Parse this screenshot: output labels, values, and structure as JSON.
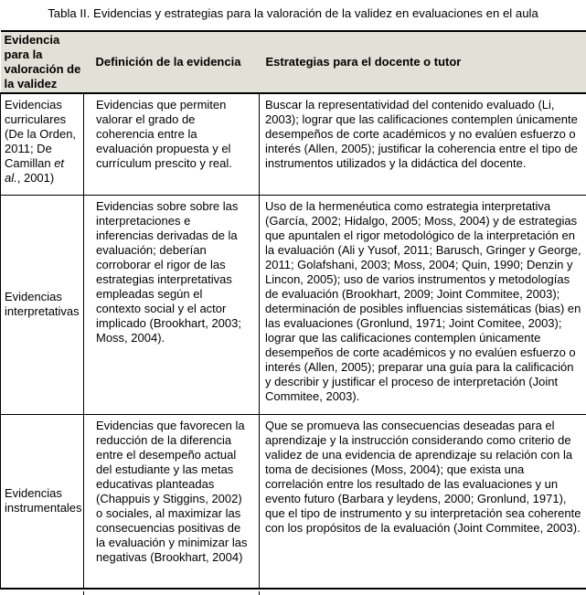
{
  "caption": "Tabla II. Evidencias y estrategias para la valoración de la validez en evaluaciones en el aula",
  "colors": {
    "header_background": "#e2e1d7",
    "border": "#000000",
    "text": "#000000",
    "page_background": "#ffffff"
  },
  "table": {
    "headers": [
      "Evidencia para la valoración de la validez",
      "Definición de la evidencia",
      "Estrategias para el docente o tutor"
    ],
    "rows": [
      {
        "evidencia_pre": "Evidencias curriculares (De la Orden, 2011; De Camillan ",
        "evidencia_italic": "et al.",
        "evidencia_post": ", 2001)",
        "definicion": "Evidencias que permiten valorar el grado de coherencia entre la evaluación propuesta y el currículum prescito y real.",
        "estrategias": "Buscar la representatividad del contenido evaluado (Li, 2003); lograr que las calificaciones contemplen únicamente desempeños de corte académicos y no evalúen esfuerzo o interés (Allen, 2005); justificar la coherencia entre el tipo de instrumentos utilizados y la didáctica del docente."
      },
      {
        "evidencia": "Evidencias interpretativas",
        "definicion": "Evidencias sobre sobre las interpretaciones e inferencias derivadas de la evaluación; deberían corroborar el rigor de las estrategias interpretativas empleadas según el contexto social y el actor implicado (Brookhart, 2003; Moss, 2004).",
        "estrategias": "Uso de la hermenéutica como estrategia interpretativa (García, 2002; Hidalgo, 2005; Moss, 2004) y de estrategias que apuntalen el rigor metodológico de la interpretación en la evaluación (Ali y Yusof, 2011; Barusch, Gringer y George, 2011; Golafshani, 2003; Moss, 2004; Quin, 1990; Denzin y Lincon, 2005); uso de varios instrumentos y metodologías de evaluación (Brookhart, 2009; Joint Commitee, 2003); determinación de posibles influencias sistemáticas (bias) en las evaluaciones (Gronlund, 1971; Joint Comitee, 2003); lograr que las calificaciones contemplen únicamente desempeños de corte académicos y no evalúen esfuerzo o interés (Allen, 2005); preparar una guía para la calificación y describir y justificar el proceso de interpretación (Joint Commitee, 2003)."
      },
      {
        "evidencia": "Evidencias instrumentales",
        "definicion": "Evidencias que favorecen la reducción de la diferencia entre el desempeño actual del estudiante y las metas educativas planteadas (Chappuis y Stiggins, 2002) o sociales, al maximizar las consecuencias positivas de la evaluación y minimizar las negativas (Brookhart, 2004)",
        "estrategias": "Que se promueva las consecuencias deseadas para el aprendizaje y la instrucción considerando como criterio de validez de una evidencia de aprendizaje su relación con la toma de decisiones (Moss, 2004); que exista una correlación entre los resultado de las evaluaciones y un evento futuro (Barbara y leydens, 2000; Gronlund, 1971), que el tipo de instrumento y su interpretación sea coherente con los propósitos de la evaluación (Joint Commitee, 2003)."
      }
    ]
  }
}
